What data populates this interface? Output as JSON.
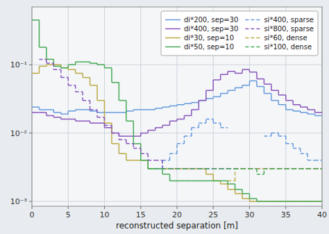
{
  "chart_data": {
    "type": "step",
    "x_label": "reconstructed separation [m]",
    "log": "y",
    "grid": true,
    "legend": "upper right",
    "xlim": [
      0,
      40
    ],
    "ylim": [
      0.00085,
      0.7
    ],
    "xticks": [
      0,
      5,
      10,
      15,
      20,
      25,
      30,
      35,
      40
    ],
    "yticks": [
      {
        "value": 0.001,
        "label": "10⁻³"
      },
      {
        "value": 0.01,
        "label": "10⁻²"
      },
      {
        "value": 0.1,
        "label": "10⁻¹"
      }
    ],
    "bins": [
      0,
      1,
      2,
      3,
      4,
      5,
      6,
      7,
      8,
      9,
      10,
      11,
      12,
      13,
      14,
      15,
      16,
      17,
      18,
      19,
      20,
      21,
      22,
      23,
      24,
      25,
      26,
      27,
      28,
      29,
      30,
      31,
      32,
      33,
      34,
      35,
      36,
      37,
      38,
      39,
      40
    ],
    "series": [
      {
        "name": "di*200, sep=30",
        "color": "#6699dd",
        "line_style": "solid",
        "values": [
          0.024,
          0.022,
          0.022,
          0.02,
          0.019,
          0.021,
          0.022,
          0.022,
          0.021,
          0.02,
          0.02,
          0.02,
          0.02,
          0.021,
          0.022,
          0.022,
          0.022,
          0.023,
          0.024,
          0.025,
          0.026,
          0.027,
          0.028,
          0.03,
          0.032,
          0.034,
          0.038,
          0.042,
          0.046,
          0.05,
          0.058,
          0.048,
          0.038,
          0.03,
          0.026,
          0.022,
          0.021,
          0.02,
          0.019,
          0.018
        ]
      },
      {
        "name": "di*400, sep=30",
        "color": "#8855bb",
        "line_style": "solid",
        "values": [
          0.02,
          0.02,
          0.018,
          0.017,
          0.016,
          0.016,
          0.015,
          0.015,
          0.014,
          0.014,
          0.012,
          0.01,
          0.009,
          0.009,
          0.009,
          0.01,
          0.011,
          0.012,
          0.013,
          0.015,
          0.016,
          0.018,
          0.022,
          0.03,
          0.042,
          0.06,
          0.072,
          0.08,
          0.075,
          0.085,
          0.078,
          0.062,
          0.052,
          0.042,
          0.036,
          0.03,
          0.026,
          0.024,
          0.022,
          0.02
        ]
      },
      {
        "name": "di*30, sep=10",
        "color": "#bbaa44",
        "line_style": "solid",
        "values": [
          0.075,
          0.095,
          0.1,
          0.1,
          0.09,
          0.085,
          0.075,
          0.065,
          0.05,
          0.03,
          0.014,
          0.007,
          0.005,
          0.004,
          0.004,
          0.004,
          0.003,
          0.003,
          0.003,
          0.003,
          0.003,
          0.003,
          0.003,
          0.003,
          0.0025,
          0.002,
          0.0018,
          0.0015,
          0.0013,
          0.0011,
          0.001,
          0.001,
          0.001,
          0.001,
          0.001,
          0.001,
          0.001,
          0.001,
          0.001,
          0.001
        ]
      },
      {
        "name": "di*50, sep=10",
        "color": "#44aa55",
        "line_style": "solid",
        "values": [
          0.45,
          0.18,
          0.12,
          0.095,
          0.09,
          0.1,
          0.11,
          0.11,
          0.105,
          0.1,
          0.09,
          0.055,
          0.03,
          0.015,
          0.007,
          0.004,
          0.003,
          0.003,
          0.0025,
          0.002,
          0.002,
          0.002,
          0.002,
          0.002,
          0.002,
          0.002,
          0.002,
          0.0018,
          0.0015,
          0.0013,
          0.0011,
          0.001,
          0.001,
          0.001,
          0.001,
          0.001,
          0.001,
          0.001,
          0.001,
          0.001
        ]
      },
      {
        "name": "si*400, sparse",
        "color": "#6699dd",
        "line_style": "dashed",
        "values": [
          null,
          null,
          null,
          null,
          null,
          null,
          null,
          null,
          null,
          null,
          null,
          null,
          null,
          null,
          null,
          null,
          null,
          0.003,
          0.004,
          0.005,
          0.007,
          0.009,
          0.012,
          0.014,
          0.016,
          0.014,
          0.012,
          null,
          null,
          null,
          null,
          null,
          0.009,
          0.01,
          0.009,
          0.007,
          0.006,
          0.005,
          0.004,
          0.004
        ]
      },
      {
        "name": "si*800, sparse",
        "color": "#8855bb",
        "line_style": "dashed",
        "values": [
          null,
          0.12,
          0.105,
          0.085,
          0.065,
          0.05,
          0.04,
          0.03,
          0.022,
          0.017,
          0.013,
          0.01,
          0.008,
          0.007,
          0.006,
          0.005,
          0.004,
          0.004,
          0.003,
          0.003,
          0.003,
          0.003,
          0.003,
          0.003,
          0.003,
          0.003,
          0.003,
          0.003,
          0.003,
          0.003,
          0.003,
          0.003,
          0.003,
          0.003,
          0.003,
          0.003,
          0.003,
          0.003,
          0.003,
          0.003
        ]
      },
      {
        "name": "si*60, dense",
        "color": "#bbaa44",
        "line_style": "dashed",
        "values": [
          null,
          null,
          null,
          null,
          null,
          null,
          null,
          null,
          null,
          null,
          null,
          null,
          null,
          null,
          null,
          null,
          null,
          null,
          null,
          null,
          null,
          null,
          null,
          null,
          null,
          null,
          null,
          0.002,
          0.003,
          0.003,
          0.003,
          0.003,
          0.003,
          0.003,
          0.003,
          0.003,
          0.003,
          0.003,
          0.003,
          0.003
        ]
      },
      {
        "name": "si*100, dense",
        "color": "#44aa55",
        "line_style": "dashed",
        "values": [
          null,
          null,
          null,
          null,
          null,
          null,
          null,
          null,
          null,
          null,
          null,
          null,
          null,
          null,
          null,
          null,
          0.003,
          0.003,
          0.003,
          0.003,
          0.003,
          0.003,
          0.003,
          0.003,
          0.003,
          0.003,
          0.003,
          0.003,
          0.003,
          0.003,
          0.003,
          0.0025,
          0.003,
          0.003,
          0.003,
          0.003,
          0.003,
          0.003,
          0.003,
          0.003
        ]
      }
    ]
  }
}
